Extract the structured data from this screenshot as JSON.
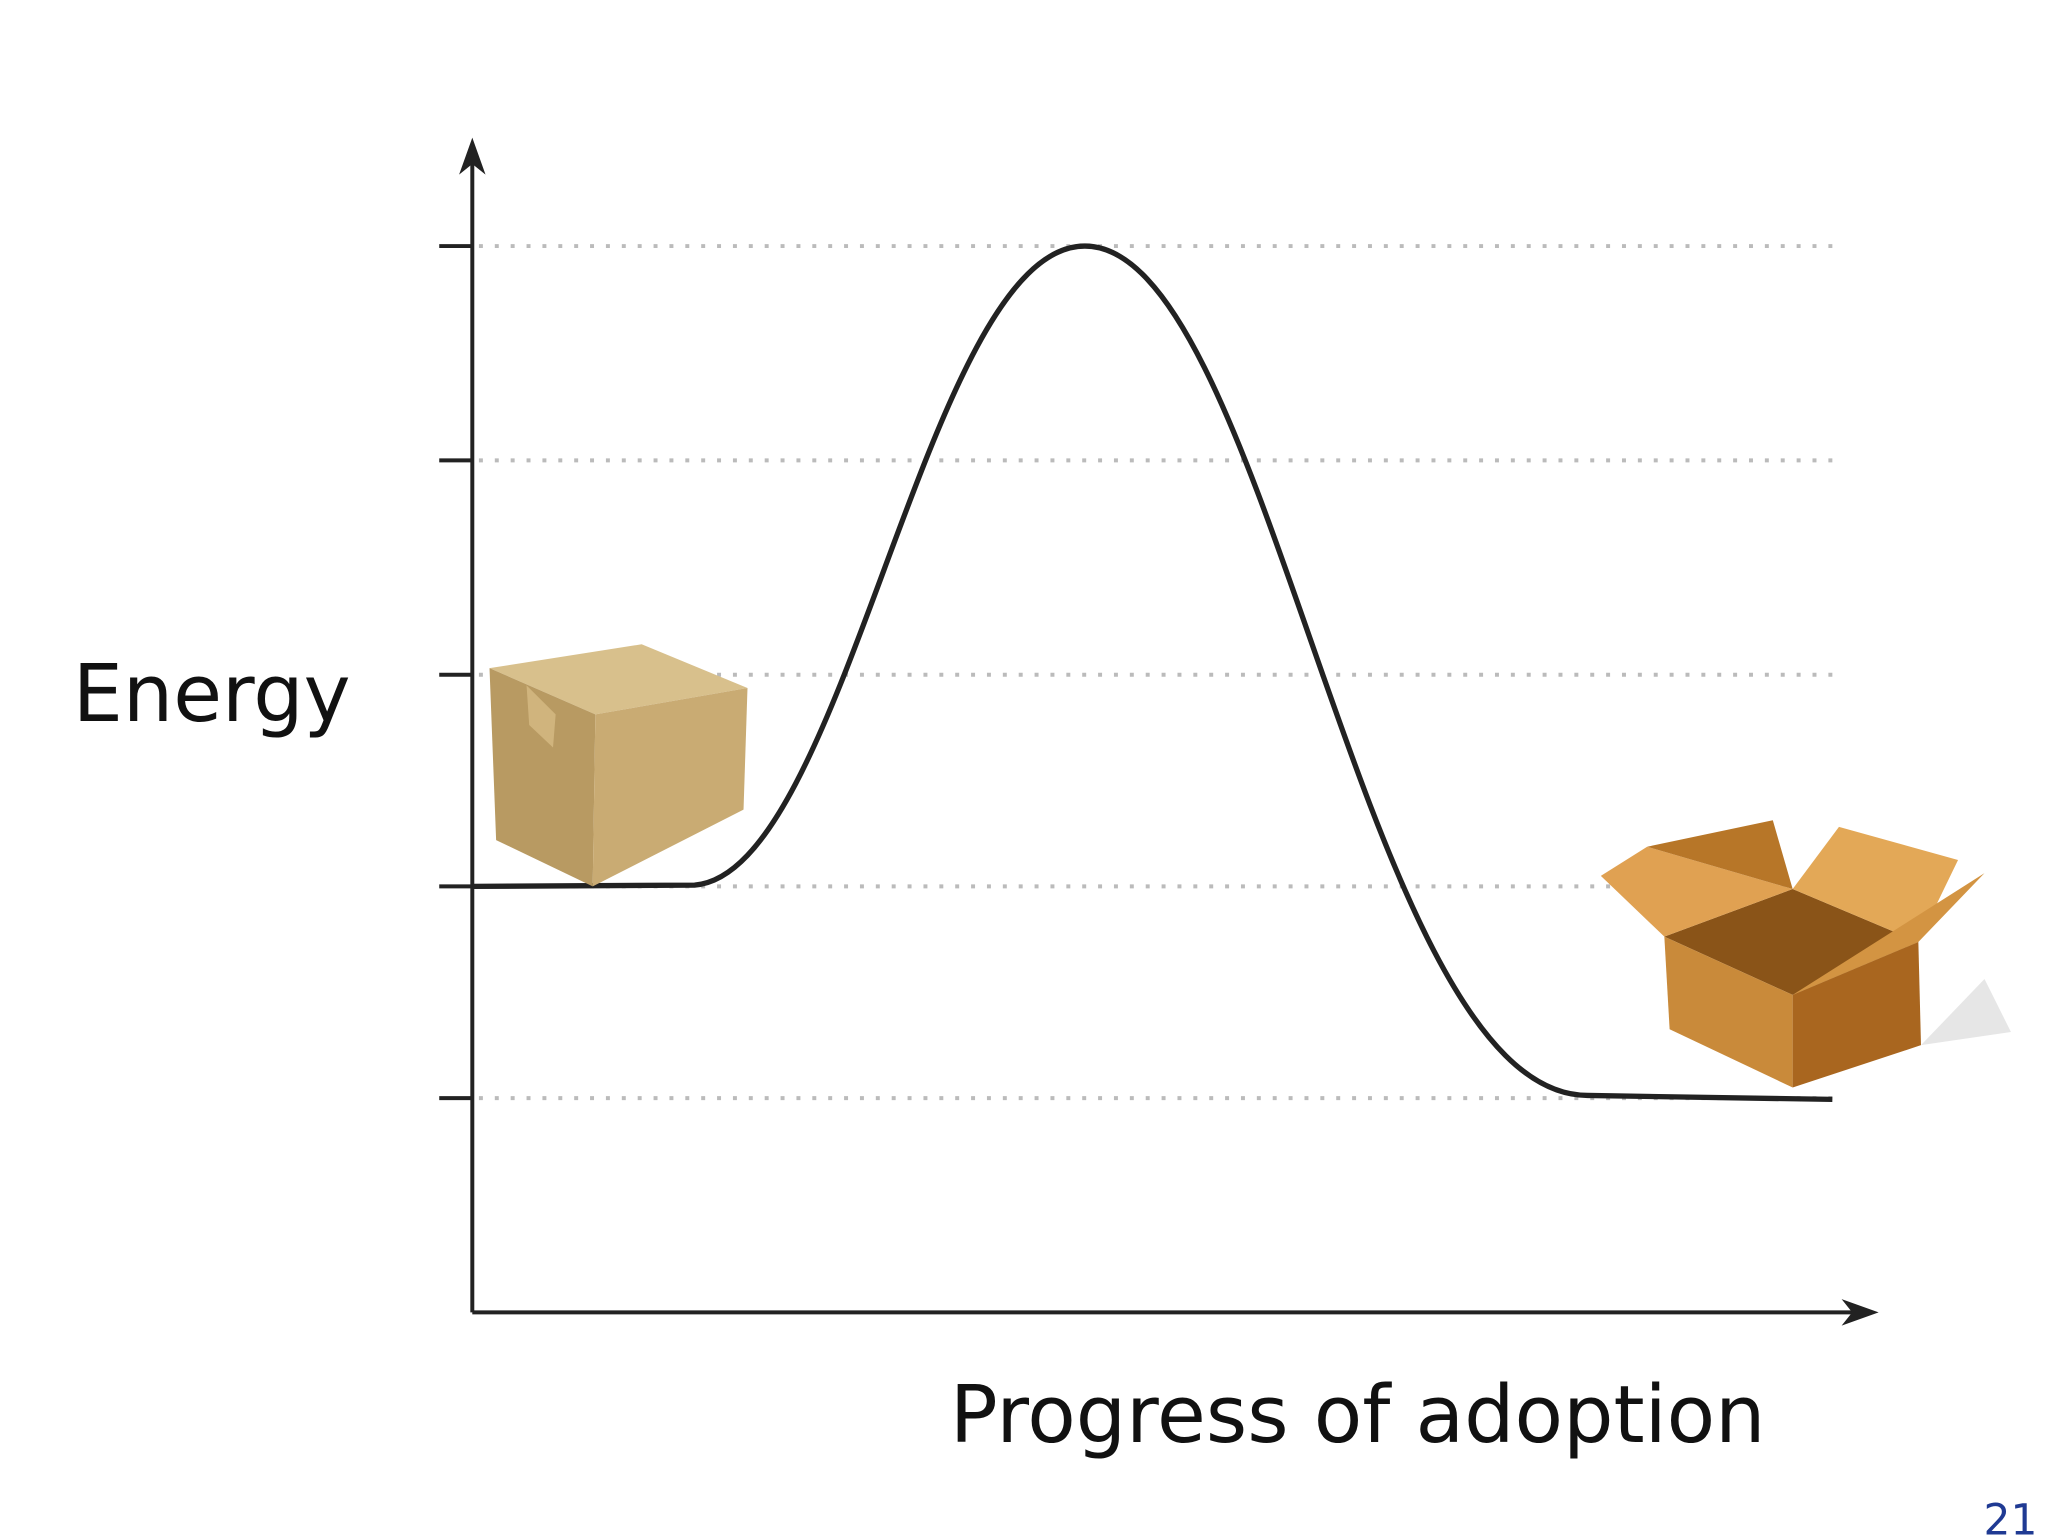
{
  "y_axis_label": "Energy",
  "x_axis_label": "Progress of adoption",
  "page_number": "21"
}
